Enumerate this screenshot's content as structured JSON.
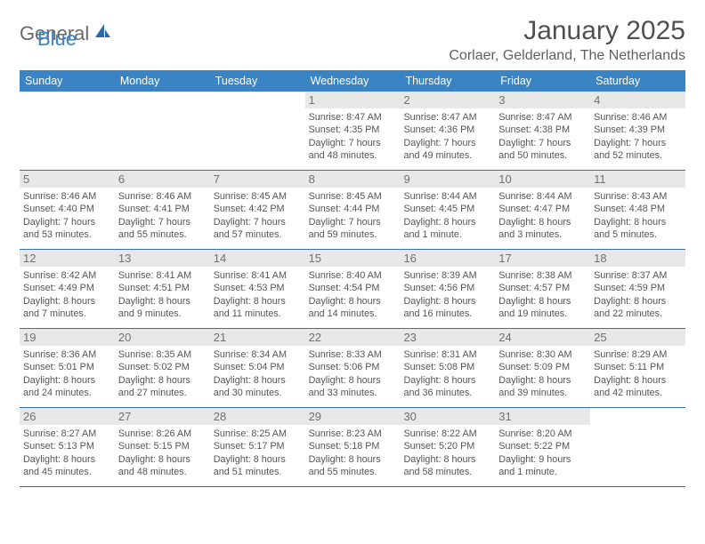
{
  "brand": {
    "part1": "General",
    "part2": "Blue"
  },
  "title": "January 2025",
  "location": "Corlaer, Gelderland, The Netherlands",
  "colors": {
    "header_bg": "#3a84c4",
    "row_border": "#3a6fa0",
    "daynum_bg": "#e8e8e8",
    "text": "#4a4a4a"
  },
  "day_names": [
    "Sunday",
    "Monday",
    "Tuesday",
    "Wednesday",
    "Thursday",
    "Friday",
    "Saturday"
  ],
  "weeks": [
    [
      {
        "num": "",
        "lines": [
          "",
          "",
          "",
          ""
        ]
      },
      {
        "num": "",
        "lines": [
          "",
          "",
          "",
          ""
        ]
      },
      {
        "num": "",
        "lines": [
          "",
          "",
          "",
          ""
        ]
      },
      {
        "num": "1",
        "lines": [
          "Sunrise: 8:47 AM",
          "Sunset: 4:35 PM",
          "Daylight: 7 hours",
          "and 48 minutes."
        ]
      },
      {
        "num": "2",
        "lines": [
          "Sunrise: 8:47 AM",
          "Sunset: 4:36 PM",
          "Daylight: 7 hours",
          "and 49 minutes."
        ]
      },
      {
        "num": "3",
        "lines": [
          "Sunrise: 8:47 AM",
          "Sunset: 4:38 PM",
          "Daylight: 7 hours",
          "and 50 minutes."
        ]
      },
      {
        "num": "4",
        "lines": [
          "Sunrise: 8:46 AM",
          "Sunset: 4:39 PM",
          "Daylight: 7 hours",
          "and 52 minutes."
        ]
      }
    ],
    [
      {
        "num": "5",
        "lines": [
          "Sunrise: 8:46 AM",
          "Sunset: 4:40 PM",
          "Daylight: 7 hours",
          "and 53 minutes."
        ]
      },
      {
        "num": "6",
        "lines": [
          "Sunrise: 8:46 AM",
          "Sunset: 4:41 PM",
          "Daylight: 7 hours",
          "and 55 minutes."
        ]
      },
      {
        "num": "7",
        "lines": [
          "Sunrise: 8:45 AM",
          "Sunset: 4:42 PM",
          "Daylight: 7 hours",
          "and 57 minutes."
        ]
      },
      {
        "num": "8",
        "lines": [
          "Sunrise: 8:45 AM",
          "Sunset: 4:44 PM",
          "Daylight: 7 hours",
          "and 59 minutes."
        ]
      },
      {
        "num": "9",
        "lines": [
          "Sunrise: 8:44 AM",
          "Sunset: 4:45 PM",
          "Daylight: 8 hours",
          "and 1 minute."
        ]
      },
      {
        "num": "10",
        "lines": [
          "Sunrise: 8:44 AM",
          "Sunset: 4:47 PM",
          "Daylight: 8 hours",
          "and 3 minutes."
        ]
      },
      {
        "num": "11",
        "lines": [
          "Sunrise: 8:43 AM",
          "Sunset: 4:48 PM",
          "Daylight: 8 hours",
          "and 5 minutes."
        ]
      }
    ],
    [
      {
        "num": "12",
        "lines": [
          "Sunrise: 8:42 AM",
          "Sunset: 4:49 PM",
          "Daylight: 8 hours",
          "and 7 minutes."
        ]
      },
      {
        "num": "13",
        "lines": [
          "Sunrise: 8:41 AM",
          "Sunset: 4:51 PM",
          "Daylight: 8 hours",
          "and 9 minutes."
        ]
      },
      {
        "num": "14",
        "lines": [
          "Sunrise: 8:41 AM",
          "Sunset: 4:53 PM",
          "Daylight: 8 hours",
          "and 11 minutes."
        ]
      },
      {
        "num": "15",
        "lines": [
          "Sunrise: 8:40 AM",
          "Sunset: 4:54 PM",
          "Daylight: 8 hours",
          "and 14 minutes."
        ]
      },
      {
        "num": "16",
        "lines": [
          "Sunrise: 8:39 AM",
          "Sunset: 4:56 PM",
          "Daylight: 8 hours",
          "and 16 minutes."
        ]
      },
      {
        "num": "17",
        "lines": [
          "Sunrise: 8:38 AM",
          "Sunset: 4:57 PM",
          "Daylight: 8 hours",
          "and 19 minutes."
        ]
      },
      {
        "num": "18",
        "lines": [
          "Sunrise: 8:37 AM",
          "Sunset: 4:59 PM",
          "Daylight: 8 hours",
          "and 22 minutes."
        ]
      }
    ],
    [
      {
        "num": "19",
        "lines": [
          "Sunrise: 8:36 AM",
          "Sunset: 5:01 PM",
          "Daylight: 8 hours",
          "and 24 minutes."
        ]
      },
      {
        "num": "20",
        "lines": [
          "Sunrise: 8:35 AM",
          "Sunset: 5:02 PM",
          "Daylight: 8 hours",
          "and 27 minutes."
        ]
      },
      {
        "num": "21",
        "lines": [
          "Sunrise: 8:34 AM",
          "Sunset: 5:04 PM",
          "Daylight: 8 hours",
          "and 30 minutes."
        ]
      },
      {
        "num": "22",
        "lines": [
          "Sunrise: 8:33 AM",
          "Sunset: 5:06 PM",
          "Daylight: 8 hours",
          "and 33 minutes."
        ]
      },
      {
        "num": "23",
        "lines": [
          "Sunrise: 8:31 AM",
          "Sunset: 5:08 PM",
          "Daylight: 8 hours",
          "and 36 minutes."
        ]
      },
      {
        "num": "24",
        "lines": [
          "Sunrise: 8:30 AM",
          "Sunset: 5:09 PM",
          "Daylight: 8 hours",
          "and 39 minutes."
        ]
      },
      {
        "num": "25",
        "lines": [
          "Sunrise: 8:29 AM",
          "Sunset: 5:11 PM",
          "Daylight: 8 hours",
          "and 42 minutes."
        ]
      }
    ],
    [
      {
        "num": "26",
        "lines": [
          "Sunrise: 8:27 AM",
          "Sunset: 5:13 PM",
          "Daylight: 8 hours",
          "and 45 minutes."
        ]
      },
      {
        "num": "27",
        "lines": [
          "Sunrise: 8:26 AM",
          "Sunset: 5:15 PM",
          "Daylight: 8 hours",
          "and 48 minutes."
        ]
      },
      {
        "num": "28",
        "lines": [
          "Sunrise: 8:25 AM",
          "Sunset: 5:17 PM",
          "Daylight: 8 hours",
          "and 51 minutes."
        ]
      },
      {
        "num": "29",
        "lines": [
          "Sunrise: 8:23 AM",
          "Sunset: 5:18 PM",
          "Daylight: 8 hours",
          "and 55 minutes."
        ]
      },
      {
        "num": "30",
        "lines": [
          "Sunrise: 8:22 AM",
          "Sunset: 5:20 PM",
          "Daylight: 8 hours",
          "and 58 minutes."
        ]
      },
      {
        "num": "31",
        "lines": [
          "Sunrise: 8:20 AM",
          "Sunset: 5:22 PM",
          "Daylight: 9 hours",
          "and 1 minute."
        ]
      },
      {
        "num": "",
        "lines": [
          "",
          "",
          "",
          ""
        ]
      }
    ]
  ]
}
